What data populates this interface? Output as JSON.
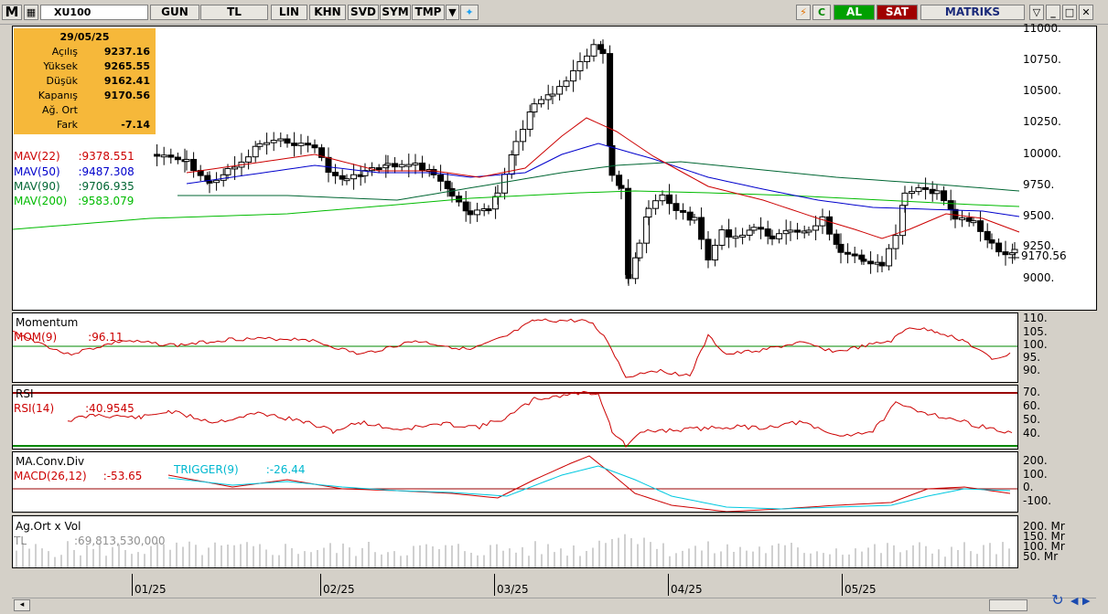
{
  "toolbar": {
    "menu_letter": "M",
    "symbol": "XU100",
    "buttons": [
      "GUN",
      "TL",
      "LIN",
      "KHN",
      "SVD",
      "SYM",
      "TMP"
    ],
    "c_label": "C",
    "buy_label": "AL",
    "sell_label": "SAT",
    "brand": "MATRIKS",
    "colors": {
      "buy": "#00a000",
      "sell": "#a00000",
      "accent": "#3b5bdb"
    }
  },
  "info_box": {
    "date": "29/05/25",
    "rows": [
      {
        "label": "Açılış",
        "value": "9237.16"
      },
      {
        "label": "Yüksek",
        "value": "9265.55"
      },
      {
        "label": "Düşük",
        "value": "9162.41"
      },
      {
        "label": "Kapanış",
        "value": "9170.56"
      },
      {
        "label": "Ağ. Ort",
        "value": ""
      },
      {
        "label": "Fark",
        "value": "-7.14"
      }
    ]
  },
  "price_panel": {
    "legend": [
      {
        "name": "MAV(22)",
        "value": ":9378.551",
        "color": "#cc0000"
      },
      {
        "name": "MAV(50)",
        "value": ":9487.308",
        "color": "#0000cc"
      },
      {
        "name": "MAV(90)",
        "value": ":9706.935",
        "color": "#006633"
      },
      {
        "name": "MAV(200)",
        "value": ":9583.079",
        "color": "#00bb00"
      }
    ],
    "y_ticks": [
      "11000.",
      "10750.",
      "10500.",
      "10250.",
      "10000.",
      "9750.",
      "9500.",
      "9250.",
      "9000."
    ],
    "last_price": "9170.56"
  },
  "momentum_panel": {
    "title": "Momentum",
    "legend_name": "MOM(9)",
    "legend_value": ":96.11",
    "y_ticks": [
      "110.",
      "105.",
      "100.",
      "95.",
      "90."
    ]
  },
  "rsi_panel": {
    "title": "RSI",
    "legend_name": "RSI(14)",
    "legend_value": ":40.9545",
    "y_ticks": [
      "70.",
      "60.",
      "50.",
      "40."
    ]
  },
  "macd_panel": {
    "title": "MA.Conv.Div",
    "legend_name": "MACD(26,12)",
    "legend_value": ":-53.65",
    "trigger_name": "TRIGGER(9)",
    "trigger_value": ":-26.44",
    "y_ticks": [
      "200.",
      "100.",
      "0.",
      "-100."
    ]
  },
  "volume_panel": {
    "title": "Ag.Ort x Vol",
    "currency": "TL",
    "value": ":69,813,530,000",
    "y_ticks": [
      "200. Mr",
      "150. Mr",
      "100. Mr",
      "50. Mr"
    ]
  },
  "x_axis": {
    "labels": [
      "01/25",
      "02/25",
      "03/25",
      "04/25",
      "05/25"
    ]
  }
}
